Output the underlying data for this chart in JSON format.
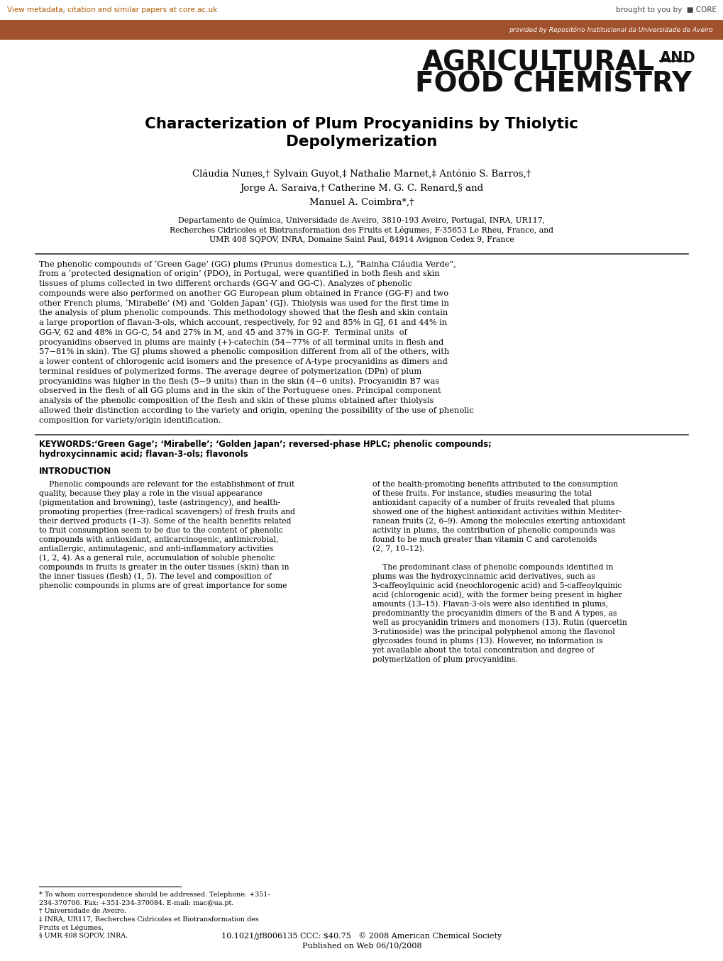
{
  "bg_color": "#ffffff",
  "header_bar_color": "#A0522D",
  "header_bar_text": "provided by Repositório Institucional da Universidade de Aveiro",
  "core_link_text": "View metadata, citation and similar papers at core.ac.uk",
  "core_logo_text": "brought to you by  CORE",
  "journal_line1": "AGRICULTURAL",
  "journal_and": "AND",
  "journal_line2": "FOOD CHEMISTRY",
  "title_line1": "Characterization of Plum Procyanidins by Thiolytic",
  "title_line2": "Depolymerization",
  "authors_line1": "Cláudia Nunes,† Sylvain Guyot,‡ Nathalie Marnet,‡ António S. Barros,†",
  "authors_line2": "Jorge A. Saraiva,† Catherine M. G. C. Renard,§ and",
  "authors_line3": "Manuel A. Coimbra*,†",
  "affil1": "Departamento de Química, Universidade de Aveiro, 3810-193 Aveiro, Portugal, INRA, UR117,",
  "affil2": "Recherches Cidricoles et Biotransformation des Fruits et Légumes, F-35653 Le Rheu, France, and",
  "affil3": "UMR 408 SQPOV, INRA, Domaine Saint Paul, 84914 Avignon Cedex 9, France",
  "abstract_lines": [
    "The phenolic compounds of ‘Green Gage’ (GG) plums (Prunus domestica L.), “Rainha Cláudia Verde”,",
    "from a ‘protected designation of origin’ (PDO), in Portugal, were quantified in both flesh and skin",
    "tissues of plums collected in two different orchards (GG-V and GG-C). Analyzes of phenolic",
    "compounds were also performed on another GG European plum obtained in France (GG-F) and two",
    "other French plums, ‘Mirabelle’ (M) and ‘Golden Japan’ (GJ). Thiolysis was used for the first time in",
    "the analysis of plum phenolic compounds. This methodology showed that the flesh and skin contain",
    "a large proportion of flavan-3-ols, which account, respectively, for 92 and 85% in GJ, 61 and 44% in",
    "GG-V, 62 and 48% in GG-C, 54 and 27% in M, and 45 and 37% in GG-F.  Terminal units  of",
    "procyanidins observed in plums are mainly (+)-catechin (54−77% of all terminal units in flesh and",
    "57−81% in skin). The GJ plums showed a phenolic composition different from all of the others, with",
    "a lower content of chlorogenic acid isomers and the presence of A-type procyanidins as dimers and",
    "terminal residues of polymerized forms. The average degree of polymerization (DPn) of plum",
    "procyanidins was higher in the flesh (5−9 units) than in the skin (4−6 units). Procyanidin B7 was",
    "observed in the flesh of all GG plums and in the skin of the Portuguese ones. Principal component",
    "analysis of the phenolic composition of the flesh and skin of these plums obtained after thiolysis",
    "allowed their distinction according to the variety and origin, opening the possibility of the use of phenolic",
    "composition for variety/origin identification."
  ],
  "kw_label": "KEYWORDS:",
  "kw_text1": "  ‘Green Gage’; ‘Mirabelle’; ‘Golden Japan’; reversed-phase HPLC; phenolic compounds;",
  "kw_text2": "hydroxycinnamic acid; flavan-3-ols; flavonols",
  "intro_heading": "INTRODUCTION",
  "intro_left": [
    "    Phenolic compounds are relevant for the establishment of fruit",
    "quality, because they play a role in the visual appearance",
    "(pigmentation and browning), taste (astringency), and health-",
    "promoting properties (free-radical scavengers) of fresh fruits and",
    "their derived products (1–3). Some of the health benefits related",
    "to fruit consumption seem to be due to the content of phenolic",
    "compounds with antioxidant, anticarcinogenic, antimicrobial,",
    "antiallergic, antimutagenic, and anti-inflammatory activities",
    "(1, 2, 4). As a general rule, accumulation of soluble phenolic",
    "compounds in fruits is greater in the outer tissues (skin) than in",
    "the inner tissues (flesh) (1, 5). The level and composition of",
    "phenolic compounds in plums are of great importance for some"
  ],
  "intro_right": [
    "of the health-promoting benefits attributed to the consumption",
    "of these fruits. For instance, studies measuring the total",
    "antioxidant capacity of a number of fruits revealed that plums",
    "showed one of the highest antioxidant activities within Mediter-",
    "ranean fruits (2, 6–9). Among the molecules exerting antioxidant",
    "activity in plums, the contribution of phenolic compounds was",
    "found to be much greater than vitamin C and carotenoids",
    "(2, 7, 10–12).",
    "",
    "    The predominant class of phenolic compounds identified in",
    "plums was the hydroxycinnamic acid derivatives, such as",
    "3-caffeoylquinic acid (neochlorogenic acid) and 5-caffeoylquinic",
    "acid (chlorogenic acid), with the former being present in higher",
    "amounts (13–15). Flavan-3-ols were also identified in plums,",
    "predominantly the procyanidin dimers of the B and A types, as",
    "well as procyanidin trimers and monomers (13). Rutin (quercetin",
    "3-rutinoside) was the principal polyphenol among the flavonol",
    "glycosides found in plums (13). However, no information is",
    "yet available about the total concentration and degree of",
    "polymerization of plum procyanidins."
  ],
  "fn1": "* To whom correspondence should be addressed. Telephone: +351-",
  "fn2": "234-370706. Fax: +351-234-370084. E-mail: mac@ua.pt.",
  "fn3": "† Universidade de Aveiro.",
  "fn4": "‡ INRA, UR117, Recherches Cidricoles et Biotransformation des",
  "fn5": "Fruits et Légumes.",
  "fn6": "§ UMR 408 SQPOV, INRA.",
  "doi1": "10.1021/jf8006135 CCC: $40.75   © 2008 American Chemical Society",
  "doi2": "Published on Web 06/10/2008",
  "orange_color": "#B05A00",
  "text_color": "#000000"
}
